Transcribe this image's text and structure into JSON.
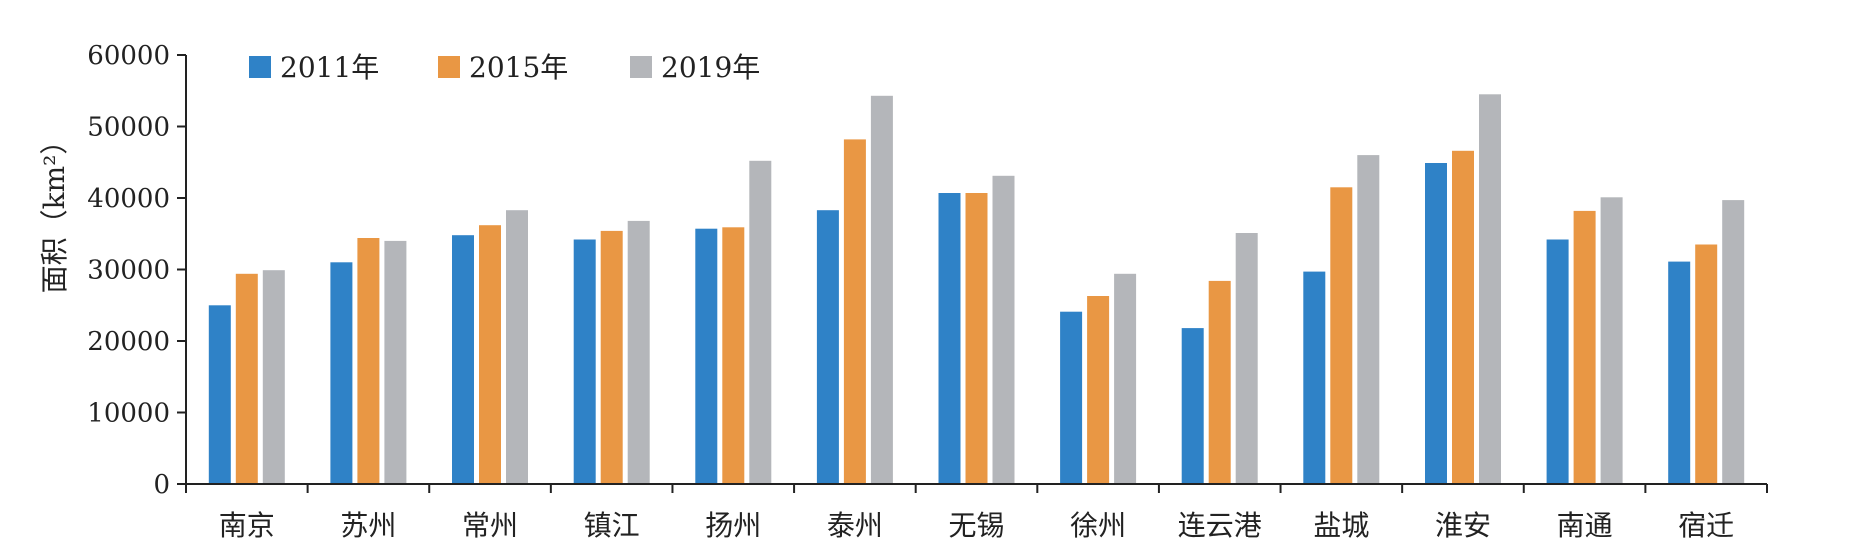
{
  "chart_data": {
    "type": "bar",
    "title": "",
    "xlabel": "",
    "ylabel": "面积（km²）",
    "ylim": [
      0,
      60000
    ],
    "yticks": [
      0,
      10000,
      20000,
      30000,
      40000,
      50000,
      60000
    ],
    "grid": false,
    "legend_position": "top-left",
    "categories": [
      "南京",
      "苏州",
      "常州",
      "镇江",
      "扬州",
      "泰州",
      "无锡",
      "徐州",
      "连云港",
      "盐城",
      "淮安",
      "南通",
      "宿迁"
    ],
    "series": [
      {
        "name": "2011年",
        "color": "#2f82c7",
        "values": [
          25000,
          31000,
          34800,
          34200,
          35700,
          38300,
          40700,
          24100,
          21800,
          29700,
          44900,
          34200,
          31100
        ]
      },
      {
        "name": "2015年",
        "color": "#e99744",
        "values": [
          29400,
          34400,
          36200,
          35400,
          35900,
          48200,
          40700,
          26300,
          28400,
          41500,
          46600,
          38200,
          33500
        ]
      },
      {
        "name": "2019年",
        "color": "#b4b6ba",
        "values": [
          29900,
          34000,
          38300,
          36800,
          45200,
          54300,
          43100,
          29400,
          35100,
          46000,
          54500,
          40100,
          39700
        ]
      }
    ]
  }
}
